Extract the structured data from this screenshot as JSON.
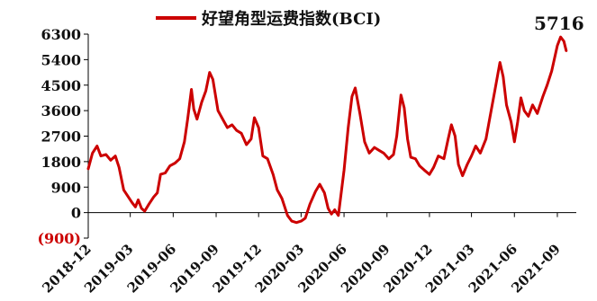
{
  "chart_data": {
    "type": "line",
    "legend": {
      "placement": "top-center"
    },
    "grid": false,
    "ylim": [
      -900,
      6300
    ],
    "yticks": [
      "6300",
      "5400",
      "4500",
      "3600",
      "2700",
      "1800",
      "900",
      "0",
      "(900)"
    ],
    "ytick_values": [
      6300,
      5400,
      4500,
      3600,
      2700,
      1800,
      900,
      0,
      -900
    ],
    "xticks": [
      "2018-12",
      "2019-03",
      "2019-06",
      "2019-09",
      "2019-12",
      "2020-03",
      "2020-06",
      "2020-09",
      "2020-12",
      "2021-03",
      "2021-06",
      "2021-09"
    ],
    "xlim": [
      "2018-12-01",
      "2021-09-30"
    ],
    "annotation": {
      "text": "5716",
      "x": "2021-09-20",
      "y": 5716
    },
    "series": [
      {
        "name": "好望角型运费指数(BCI)",
        "color": "#cc0000",
        "points": [
          [
            "2018-12-01",
            1550
          ],
          [
            "2018-12-10",
            2100
          ],
          [
            "2018-12-20",
            2350
          ],
          [
            "2018-12-28",
            2000
          ],
          [
            "2019-01-08",
            2050
          ],
          [
            "2019-01-18",
            1850
          ],
          [
            "2019-01-28",
            2000
          ],
          [
            "2019-02-05",
            1600
          ],
          [
            "2019-02-15",
            800
          ],
          [
            "2019-02-25",
            550
          ],
          [
            "2019-03-05",
            350
          ],
          [
            "2019-03-12",
            200
          ],
          [
            "2019-03-18",
            450
          ],
          [
            "2019-03-25",
            150
          ],
          [
            "2019-04-01",
            50
          ],
          [
            "2019-04-10",
            300
          ],
          [
            "2019-04-20",
            550
          ],
          [
            "2019-04-28",
            700
          ],
          [
            "2019-05-05",
            1350
          ],
          [
            "2019-05-15",
            1400
          ],
          [
            "2019-05-25",
            1650
          ],
          [
            "2019-06-05",
            1750
          ],
          [
            "2019-06-15",
            1900
          ],
          [
            "2019-06-25",
            2500
          ],
          [
            "2019-07-02",
            3300
          ],
          [
            "2019-07-10",
            4350
          ],
          [
            "2019-07-15",
            3650
          ],
          [
            "2019-07-22",
            3300
          ],
          [
            "2019-08-01",
            3900
          ],
          [
            "2019-08-10",
            4300
          ],
          [
            "2019-08-18",
            4950
          ],
          [
            "2019-08-25",
            4700
          ],
          [
            "2019-09-05",
            3600
          ],
          [
            "2019-09-15",
            3300
          ],
          [
            "2019-09-25",
            3000
          ],
          [
            "2019-10-05",
            3100
          ],
          [
            "2019-10-15",
            2900
          ],
          [
            "2019-10-25",
            2800
          ],
          [
            "2019-11-05",
            2400
          ],
          [
            "2019-11-15",
            2600
          ],
          [
            "2019-11-22",
            3350
          ],
          [
            "2019-12-01",
            3000
          ],
          [
            "2019-12-10",
            2000
          ],
          [
            "2019-12-20",
            1900
          ],
          [
            "2020-01-01",
            1350
          ],
          [
            "2020-01-10",
            800
          ],
          [
            "2020-01-20",
            500
          ],
          [
            "2020-02-01",
            -100
          ],
          [
            "2020-02-10",
            -300
          ],
          [
            "2020-02-20",
            -350
          ],
          [
            "2020-03-01",
            -300
          ],
          [
            "2020-03-10",
            -200
          ],
          [
            "2020-03-20",
            300
          ],
          [
            "2020-04-01",
            750
          ],
          [
            "2020-04-10",
            1000
          ],
          [
            "2020-04-20",
            700
          ],
          [
            "2020-04-28",
            150
          ],
          [
            "2020-05-05",
            -50
          ],
          [
            "2020-05-12",
            100
          ],
          [
            "2020-05-20",
            -100
          ],
          [
            "2020-06-01",
            1500
          ],
          [
            "2020-06-10",
            3000
          ],
          [
            "2020-06-18",
            4100
          ],
          [
            "2020-06-25",
            4400
          ],
          [
            "2020-07-05",
            3500
          ],
          [
            "2020-07-15",
            2500
          ],
          [
            "2020-07-25",
            2100
          ],
          [
            "2020-08-05",
            2300
          ],
          [
            "2020-08-15",
            2200
          ],
          [
            "2020-08-25",
            2100
          ],
          [
            "2020-09-05",
            1900
          ],
          [
            "2020-09-15",
            2050
          ],
          [
            "2020-09-22",
            2700
          ],
          [
            "2020-10-01",
            4150
          ],
          [
            "2020-10-08",
            3700
          ],
          [
            "2020-10-15",
            2600
          ],
          [
            "2020-10-22",
            1950
          ],
          [
            "2020-11-01",
            1900
          ],
          [
            "2020-11-10",
            1650
          ],
          [
            "2020-11-20",
            1500
          ],
          [
            "2020-12-01",
            1350
          ],
          [
            "2020-12-10",
            1600
          ],
          [
            "2020-12-20",
            2000
          ],
          [
            "2021-01-01",
            1900
          ],
          [
            "2021-01-10",
            2600
          ],
          [
            "2021-01-17",
            3100
          ],
          [
            "2021-01-25",
            2700
          ],
          [
            "2021-02-01",
            1700
          ],
          [
            "2021-02-10",
            1300
          ],
          [
            "2021-02-20",
            1700
          ],
          [
            "2021-03-01",
            2000
          ],
          [
            "2021-03-10",
            2350
          ],
          [
            "2021-03-20",
            2100
          ],
          [
            "2021-04-01",
            2600
          ],
          [
            "2021-04-10",
            3400
          ],
          [
            "2021-04-20",
            4300
          ],
          [
            "2021-05-01",
            5300
          ],
          [
            "2021-05-08",
            4800
          ],
          [
            "2021-05-15",
            3800
          ],
          [
            "2021-05-25",
            3200
          ],
          [
            "2021-06-01",
            2500
          ],
          [
            "2021-06-08",
            3200
          ],
          [
            "2021-06-15",
            4050
          ],
          [
            "2021-06-22",
            3600
          ],
          [
            "2021-07-01",
            3400
          ],
          [
            "2021-07-10",
            3800
          ],
          [
            "2021-07-20",
            3500
          ],
          [
            "2021-08-01",
            4100
          ],
          [
            "2021-08-10",
            4500
          ],
          [
            "2021-08-20",
            5000
          ],
          [
            "2021-09-01",
            5900
          ],
          [
            "2021-09-08",
            6200
          ],
          [
            "2021-09-15",
            6050
          ],
          [
            "2021-09-20",
            5716
          ]
        ]
      }
    ]
  }
}
